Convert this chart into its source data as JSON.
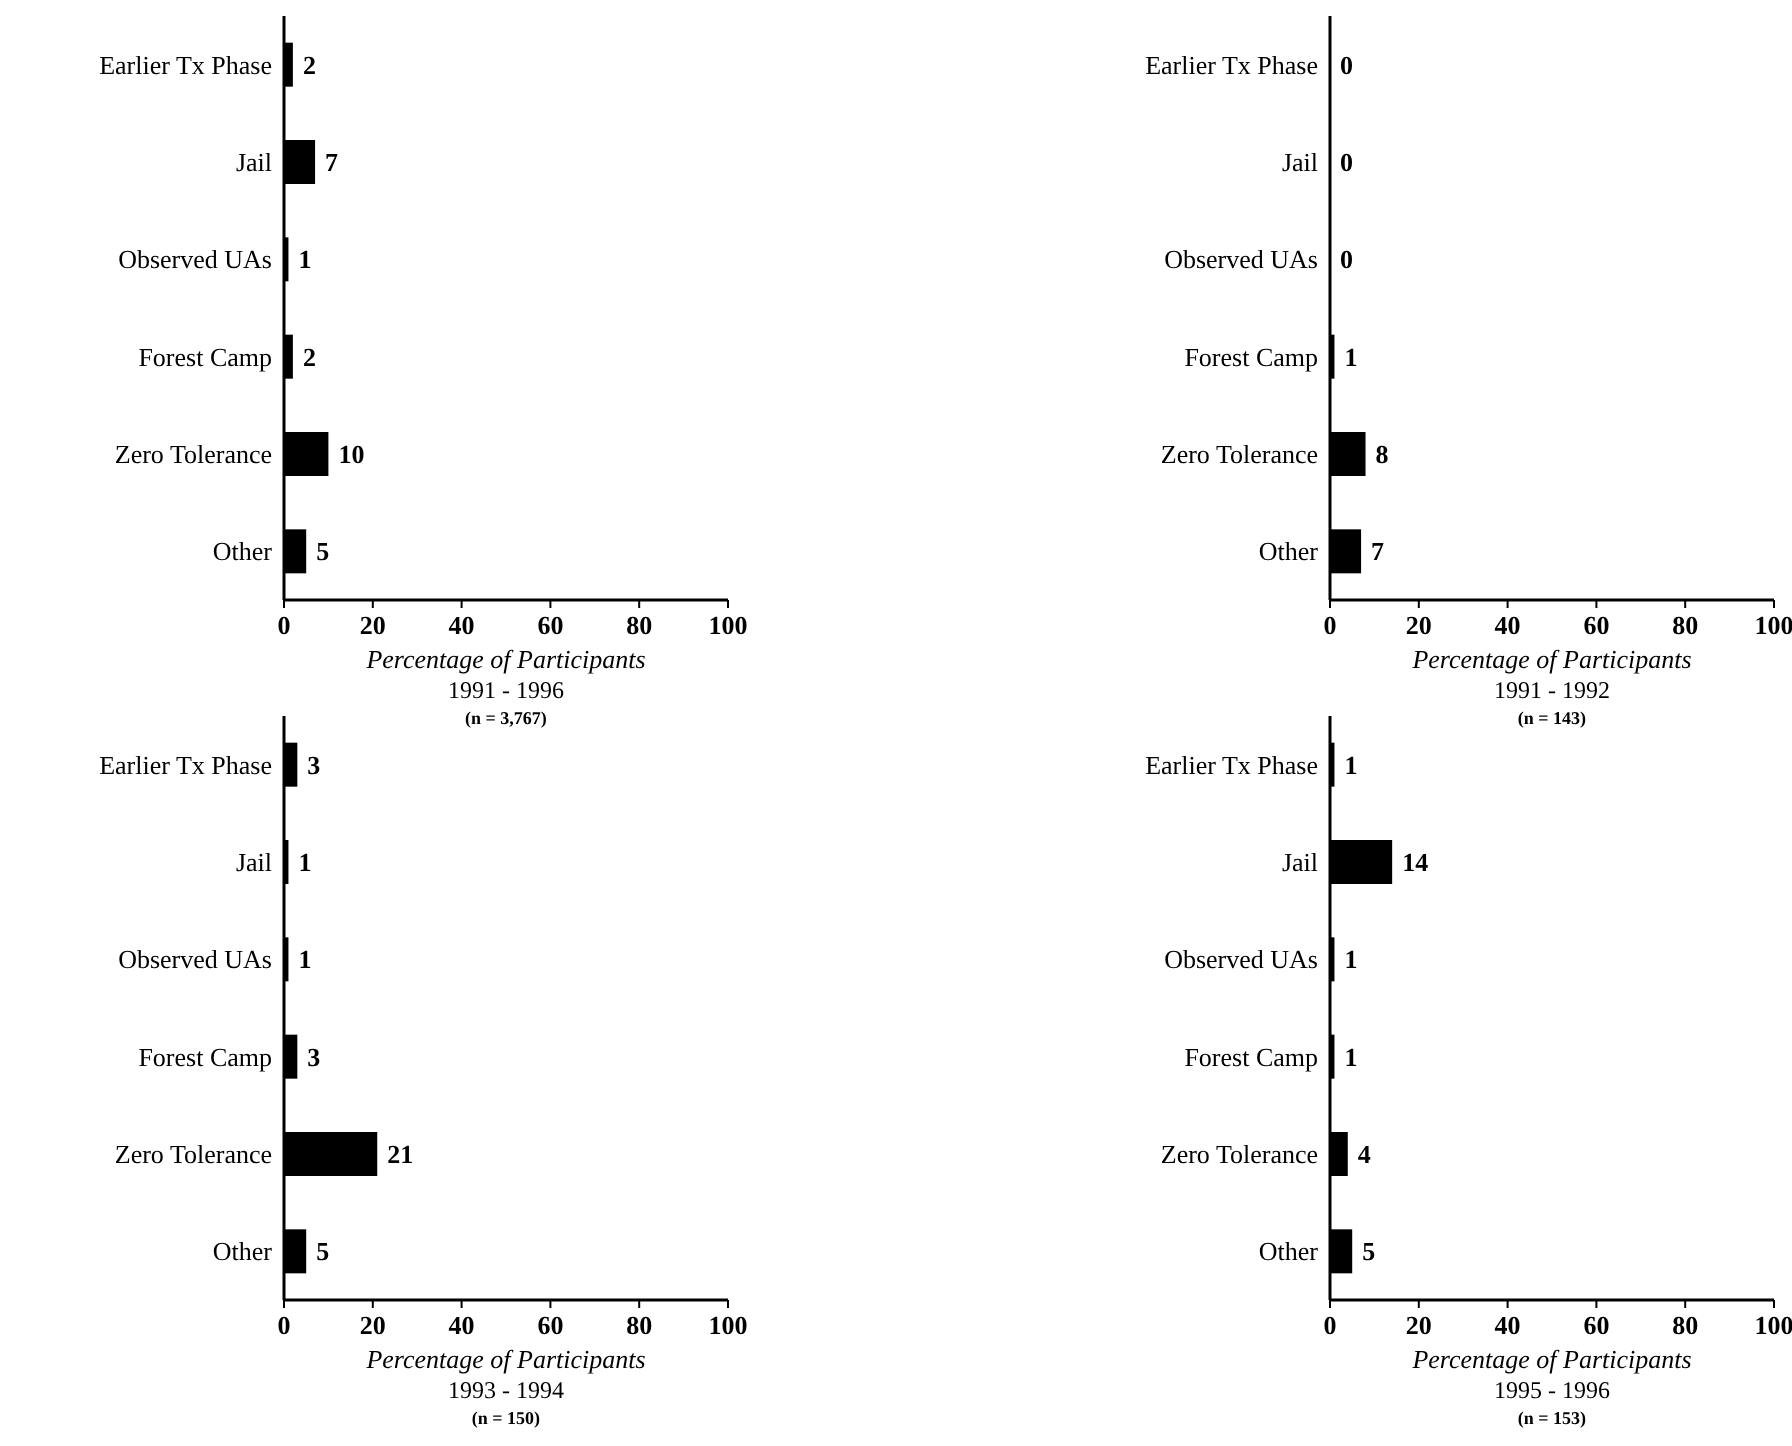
{
  "chart_data": [
    {
      "type": "bar",
      "orientation": "horizontal",
      "categories": [
        "Earlier Tx Phase",
        "Jail",
        "Observed UAs",
        "Forest Camp",
        "Zero Tolerance",
        "Other"
      ],
      "values": [
        2,
        7,
        1,
        2,
        10,
        5
      ],
      "color": "#000000",
      "xlim": [
        0,
        100
      ],
      "xticks": [
        0,
        20,
        40,
        60,
        80,
        100
      ],
      "data_labels": true,
      "xlabel": "Percentage of Participants",
      "subtitle": "1991 - 1996",
      "annotations": [
        "(n = 3,767)"
      ]
    },
    {
      "type": "bar",
      "orientation": "horizontal",
      "categories": [
        "Earlier Tx Phase",
        "Jail",
        "Observed UAs",
        "Forest Camp",
        "Zero Tolerance",
        "Other"
      ],
      "values": [
        0,
        0,
        0,
        1,
        8,
        7
      ],
      "color": "#000000",
      "xlim": [
        0,
        100
      ],
      "xticks": [
        0,
        20,
        40,
        60,
        80,
        100
      ],
      "data_labels": true,
      "xlabel": "Percentage of Participants",
      "subtitle": "1991 - 1992",
      "annotations": [
        "(n = 143)"
      ]
    },
    {
      "type": "bar",
      "orientation": "horizontal",
      "categories": [
        "Earlier Tx Phase",
        "Jail",
        "Observed UAs",
        "Forest Camp",
        "Zero Tolerance",
        "Other"
      ],
      "values": [
        3,
        1,
        1,
        3,
        21,
        5
      ],
      "color": "#000000",
      "xlim": [
        0,
        100
      ],
      "xticks": [
        0,
        20,
        40,
        60,
        80,
        100
      ],
      "data_labels": true,
      "xlabel": "Percentage of Participants",
      "subtitle": "1993 - 1994",
      "annotations": [
        "(n = 150)"
      ]
    },
    {
      "type": "bar",
      "orientation": "horizontal",
      "categories": [
        "Earlier Tx Phase",
        "Jail",
        "Observed UAs",
        "Forest Camp",
        "Zero Tolerance",
        "Other"
      ],
      "values": [
        1,
        14,
        1,
        1,
        4,
        5
      ],
      "color": "#000000",
      "xlim": [
        0,
        100
      ],
      "xticks": [
        0,
        20,
        40,
        60,
        80,
        100
      ],
      "data_labels": true,
      "xlabel": "Percentage of Participants",
      "subtitle": "1995 - 1996",
      "annotations": [
        "(n = 153)"
      ]
    }
  ]
}
